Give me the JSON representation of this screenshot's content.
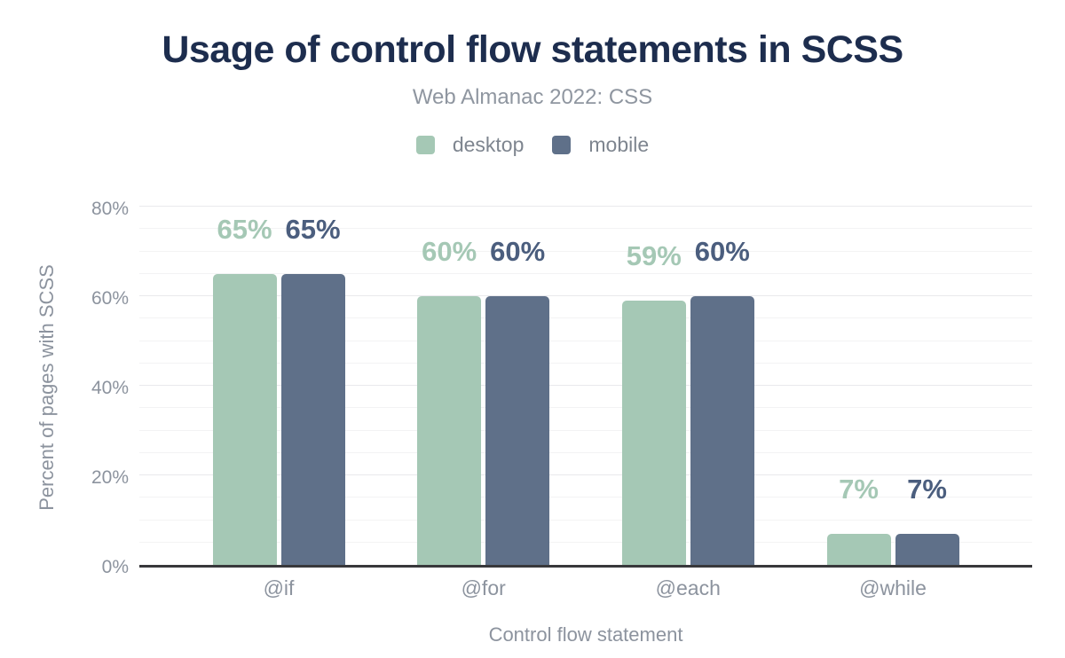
{
  "header": {
    "title": "Usage of control flow statements in SCSS",
    "subtitle": "Web Almanac 2022: CSS"
  },
  "legend": [
    {
      "label": "desktop",
      "color": "#a5c8b5"
    },
    {
      "label": "mobile",
      "color": "#5f7089"
    }
  ],
  "chart_data": {
    "type": "bar",
    "title": "Usage of control flow statements in SCSS",
    "subtitle": "Web Almanac 2022: CSS",
    "categories": [
      "@if",
      "@for",
      "@each",
      "@while"
    ],
    "series": [
      {
        "name": "desktop",
        "color": "#a5c8b5",
        "label_color": "#a5c8b5",
        "values": [
          65,
          60,
          59,
          7
        ],
        "labels": [
          "65%",
          "60%",
          "59%",
          "7%"
        ]
      },
      {
        "name": "mobile",
        "color": "#5f7089",
        "label_color": "#4b5e7e",
        "values": [
          65,
          60,
          60,
          7
        ],
        "labels": [
          "65%",
          "60%",
          "60%",
          "7%"
        ]
      }
    ],
    "xlabel": "Control flow statement",
    "ylabel": "Percent of pages with SCSS",
    "ylim": [
      0,
      80
    ],
    "yticks": [
      "0%",
      "20%",
      "40%",
      "60%",
      "80%"
    ],
    "grid": "horizontal lines every 5%, darker every 20%",
    "legend_position": "top center",
    "axis_line_color": "#38383b"
  }
}
